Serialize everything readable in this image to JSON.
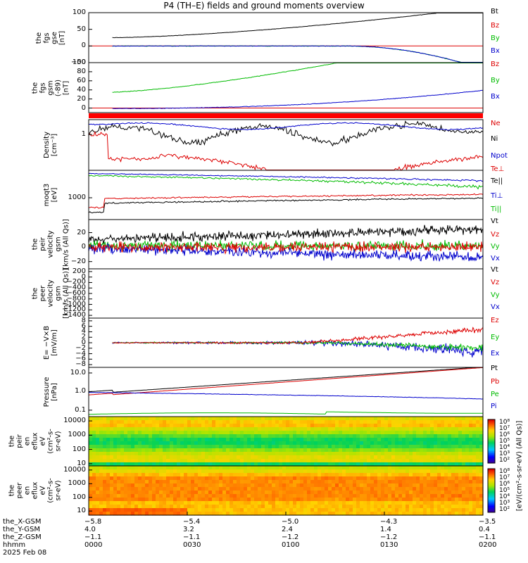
{
  "title": "P4 (TH–E) fields and ground moments overview",
  "chart_data": [
    {
      "type": "line",
      "name": "fgs_gse",
      "ylabel": [
        "the",
        "fgs",
        "gse",
        "[nT]"
      ],
      "ylim": [
        -50,
        100
      ],
      "yticks": [
        "100",
        "50",
        "0",
        "−50"
      ],
      "legend": [
        {
          "text": "Bt",
          "color": "#000000"
        },
        {
          "text": "Bz",
          "color": "#dd0000"
        },
        {
          "text": "By",
          "color": "#00bb00"
        },
        {
          "text": "Bx",
          "color": "#0000cc"
        }
      ]
    },
    {
      "type": "line",
      "name": "fgs_gsm",
      "ylabel": [
        "the",
        "fgs",
        "gsm",
        "(-89)",
        "[nT]"
      ],
      "ylim": [
        -10,
        100
      ],
      "yticks": [
        "100",
        "80",
        "60",
        "40",
        "20",
        "0"
      ],
      "legend": [
        {
          "text": "Bz",
          "color": "#dd0000"
        },
        {
          "text": "By",
          "color": "#00bb00"
        },
        {
          "text": "Bx",
          "color": "#0000cc"
        }
      ]
    },
    {
      "type": "line",
      "name": "density",
      "ylabel": [
        "Density",
        "[cm⁻³]"
      ],
      "ylim": [
        0.04,
        1.4
      ],
      "yticks": [
        "1"
      ],
      "legend": [
        {
          "text": "Ne",
          "color": "#dd0000"
        },
        {
          "text": "Ni",
          "color": "#000000"
        },
        {
          "text": "Npot",
          "color": "#0000cc"
        },
        {
          "text": "Te⊥",
          "color": "#dd0000"
        }
      ]
    },
    {
      "type": "line",
      "name": "temperature",
      "ylabel": [
        "moqt3",
        "[eV]"
      ],
      "yticks": [
        "1000"
      ],
      "legend": [
        {
          "text": "Te||",
          "color": "#000000"
        },
        {
          "text": "Ti⊥",
          "color": "#0000cc"
        },
        {
          "text": "Ti||",
          "color": "#00bb00"
        }
      ]
    },
    {
      "type": "line",
      "name": "peir_velocity",
      "ylabel": [
        "the",
        "peir",
        "velocity",
        "gsm",
        "[km/s (All Qs)]"
      ],
      "ylim": [
        -30,
        38
      ],
      "yticks": [
        "20",
        "0",
        "−20"
      ],
      "legend": [
        {
          "text": "Vt",
          "color": "#000000"
        },
        {
          "text": "Vz",
          "color": "#dd0000"
        },
        {
          "text": "Vy",
          "color": "#00bb00"
        },
        {
          "text": "Vx",
          "color": "#0000cc"
        }
      ]
    },
    {
      "type": "line",
      "name": "peer_velocity",
      "ylabel": [
        "the",
        "peer",
        "velocity",
        "gsm",
        "[km/s (All Qs)]"
      ],
      "ylim": [
        -1500,
        300
      ],
      "yticks": [
        "200",
        "0",
        "−200",
        "−400",
        "−600",
        "−800",
        "−1000",
        "−1200",
        "−1400"
      ],
      "legend": [
        {
          "text": "Vt",
          "color": "#000000"
        },
        {
          "text": "Vz",
          "color": "#dd0000"
        },
        {
          "text": "Vy",
          "color": "#00bb00"
        },
        {
          "text": "Vx",
          "color": "#0000cc"
        }
      ]
    },
    {
      "type": "line",
      "name": "efield",
      "ylabel": [
        "E= −V×B",
        "[mV/m]"
      ],
      "ylim": [
        -9,
        9
      ],
      "yticks": [
        "8",
        "6",
        "4",
        "2",
        "0",
        "−2",
        "−4",
        "−6",
        "−8"
      ],
      "legend": [
        {
          "text": "Ez",
          "color": "#dd0000"
        },
        {
          "text": "Ey",
          "color": "#00bb00"
        },
        {
          "text": "Ex",
          "color": "#0000cc"
        }
      ]
    },
    {
      "type": "line",
      "name": "pressure",
      "ylabel": [
        "Pressure",
        "[nPa]"
      ],
      "scale": "log",
      "ylim": [
        0.045,
        20
      ],
      "yticks": [
        "10.0",
        "1.0",
        "0.1"
      ],
      "legend": [
        {
          "text": "Pt",
          "color": "#000000"
        },
        {
          "text": "Pb",
          "color": "#dd0000"
        },
        {
          "text": "Pe",
          "color": "#00bb00"
        },
        {
          "text": "Pi",
          "color": "#0000cc"
        }
      ]
    },
    {
      "type": "heatmap",
      "name": "peir_eflux",
      "ylabel": [
        "the",
        "peir",
        "en",
        "eflux",
        "eV",
        "(cm²-s-",
        "sr-eV)"
      ],
      "scale": "log",
      "ylim": [
        7,
        20000
      ],
      "yticks": [
        "10000",
        "1000",
        "100",
        "10"
      ],
      "colorbar": [
        "10⁸",
        "10⁷",
        "10⁶",
        "10⁵",
        "10⁴",
        "10³",
        "10²"
      ]
    },
    {
      "type": "heatmap",
      "name": "peer_eflux",
      "ylabel": [
        "the",
        "peer",
        "en",
        "eflux",
        "eV",
        "(cm²-s-",
        "sr-eV)"
      ],
      "scale": "log",
      "ylim": [
        5,
        20000
      ],
      "yticks": [
        "10000",
        "1000",
        "100",
        "10"
      ],
      "colorbar": [
        "10⁸",
        "10⁷",
        "10⁶",
        "10⁵",
        "10⁴",
        "10³",
        "10²"
      ]
    }
  ],
  "colorbar_unit": "[eV/(cm²-s-sr-eV) (All Qs)]",
  "xaxis": {
    "rows": [
      {
        "label": "the_X-GSM",
        "values": [
          "−5.8",
          "−5.4",
          "−5.0",
          "−4.3",
          "−3.5"
        ]
      },
      {
        "label": "the_Y-GSM",
        "values": [
          "4.0",
          "3.2",
          "2.4",
          "1.4",
          "0.4"
        ]
      },
      {
        "label": "the_Z-GSM",
        "values": [
          "−1.1",
          "−1.1",
          "−1.2",
          "−1.2",
          "−1.1"
        ]
      },
      {
        "label": "hhmm",
        "values": [
          "0000",
          "0030",
          "0100",
          "0130",
          "0200"
        ]
      }
    ],
    "date": "2025 Feb 08"
  }
}
